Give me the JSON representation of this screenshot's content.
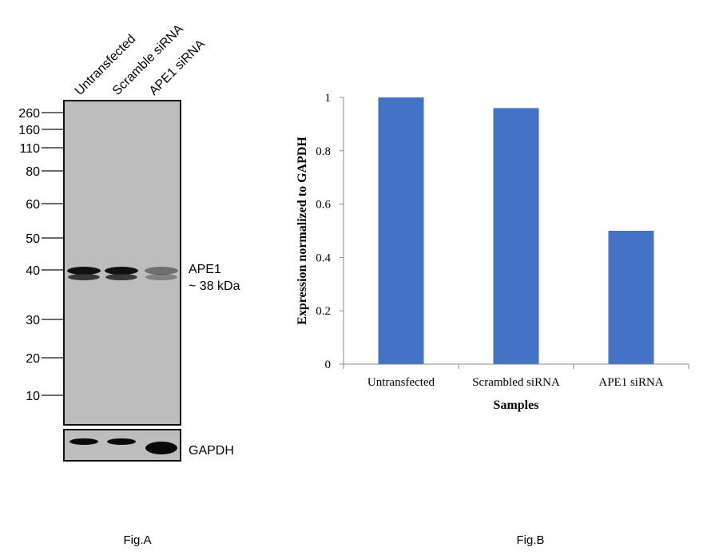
{
  "figure_a": {
    "caption": "Fig.A",
    "lanes": [
      "Untransfected",
      "Scramble siRNA",
      "APE1 siRNA"
    ],
    "markers": [
      "260",
      "160",
      "110",
      "80",
      "60",
      "50",
      "40",
      "30",
      "20",
      "10"
    ],
    "band_label": "APE1",
    "band_size": "~ 38 kDa",
    "loading_control": "GAPDH",
    "band_intensity": [
      1.0,
      1.0,
      0.45
    ],
    "gapdh_intensity": [
      0.8,
      0.8,
      1.0
    ]
  },
  "chart_data": {
    "type": "bar",
    "caption": "Fig.B",
    "categories": [
      "Untransfected",
      "Scrambled siRNA",
      "APE1 siRNA"
    ],
    "values": [
      1.0,
      0.96,
      0.5
    ],
    "xlabel": "Samples",
    "ylabel": "Expression normalized to GAPDH",
    "ylim": [
      0,
      1
    ],
    "yticks": [
      "0",
      "0.2",
      "0.4",
      "0.6",
      "0.8",
      "1"
    ],
    "grid": false,
    "bar_color": "#4472C4"
  }
}
